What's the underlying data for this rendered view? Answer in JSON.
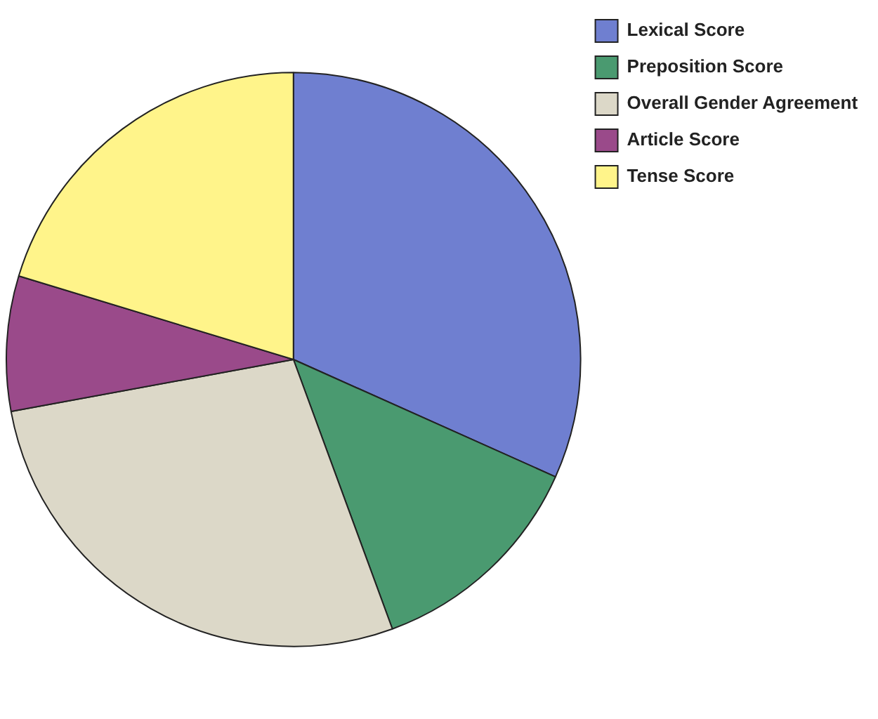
{
  "chart_data": {
    "type": "pie",
    "categories": [
      "Lexical Score",
      "Preposition Score",
      "Overall Gender Agreement",
      "Article Score",
      "Tense Score"
    ],
    "values": [
      31.7,
      12.7,
      27.7,
      7.6,
      20.3
    ],
    "colors": [
      "#6f7fd0",
      "#4a9a70",
      "#dcd8c8",
      "#9a4a8a",
      "#fff48a"
    ],
    "legend": "top right"
  }
}
